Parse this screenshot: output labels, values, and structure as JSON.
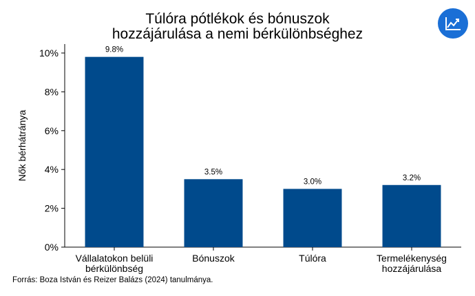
{
  "title_lines": [
    "Túlóra pótlékok és bónuszok",
    "hozzájárulása a nemi bérkülönbséghez"
  ],
  "badge": {
    "icon": "trend-chart-icon",
    "color": "#1a6fd6"
  },
  "source": "Forrás: Boza István és Reizer Balázs (2024) tanulmánya.",
  "chart_data": {
    "type": "bar",
    "title": "Túlóra pótlékok és bónuszok hozzájárulása a nemi bérkülönbséghez",
    "categories": [
      [
        "Vállalatokon belüli",
        "bérkülönbség"
      ],
      [
        "Bónuszok"
      ],
      [
        "Túlóra"
      ],
      [
        "Termelékenység",
        "hozzájárulása"
      ]
    ],
    "values": [
      9.8,
      3.5,
      3.0,
      3.2
    ],
    "value_labels": [
      "9.8%",
      "3.5%",
      "3.0%",
      "3.2%"
    ],
    "ylabel": "Nők bérhátránya",
    "xlabel": "",
    "ylim": [
      0,
      10
    ],
    "yticks": [
      0,
      2,
      4,
      6,
      8,
      10
    ],
    "ytick_labels": [
      "0%",
      "2%",
      "4%",
      "6%",
      "8%",
      "10%"
    ],
    "bar_color": "#004a8c",
    "grid": false,
    "legend": "none"
  }
}
